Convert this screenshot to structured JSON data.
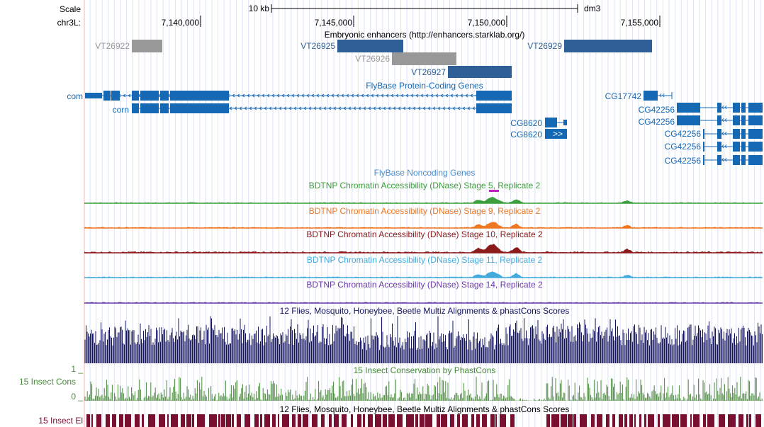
{
  "header": {
    "scale_label": "Scale",
    "chrom_label": "chr3L:",
    "scalebar_label": "10 kb",
    "assembly": "dm3",
    "positions": [
      "7,140,000",
      "7,145,000",
      "7,150,000",
      "7,155,000"
    ]
  },
  "tracks": {
    "enhancers_title": "Embryonic enhancers (http://enhancers.starklab.org/)",
    "enhancers": [
      {
        "name": "VT26922",
        "color": "#999999"
      },
      {
        "name": "VT26925",
        "color": "#2f5f97"
      },
      {
        "name": "VT26926",
        "color": "#999999"
      },
      {
        "name": "VT26927",
        "color": "#2f5f97"
      },
      {
        "name": "VT26929",
        "color": "#2f5f97"
      }
    ],
    "flybase_coding_title": "FlyBase Protein-Coding Genes",
    "genes": {
      "com": "com",
      "corn": "corn",
      "cg8620_a": "CG8620",
      "cg8620_b": "CG8620",
      "cg17742": "CG17742",
      "cg42256": [
        "CG42256",
        "CG42256",
        "CG42256",
        "CG42256",
        "CG42256"
      ]
    },
    "flybase_noncoding_title": "FlyBase Noncoding Genes",
    "dnase": [
      {
        "title": "BDTNP Chromatin Accessibility (DNase) Stage 5, Replicate 2",
        "color": "#3c9e3c"
      },
      {
        "title": "BDTNP Chromatin Accessibility (DNase) Stage 9, Replicate 2",
        "color": "#ee7722"
      },
      {
        "title": "BDTNP Chromatin Accessibility (DNase) Stage 10, Replicate 2",
        "color": "#8b1a1a"
      },
      {
        "title": "BDTNP Chromatin Accessibility (DNase) Stage 11, Replicate 2",
        "color": "#44aadd"
      },
      {
        "title": "BDTNP Chromatin Accessibility (DNase) Stage 14, Replicate 2",
        "color": "#6a3aa8"
      }
    ],
    "multiz_title": "12 Flies, Mosquito, Honeybee, Beetle Multiz Alignments & phastCons Scores",
    "multiz_color": "#14145e",
    "phastcons_title": "15 Insect Conservation by PhastCons",
    "phastcons_color": "#4a8a3c",
    "phastcons_left": "15 Insect Cons",
    "phastcons_axis_top": "1 _",
    "phastcons_axis_bottom": "0 _",
    "multiz_title_2": "12 Flies, Mosquito, Honeybee, Beetle Multiz Alignments & phastCons Scores",
    "elements_left": "15 Insect El",
    "elements_color": "#7a1030"
  }
}
